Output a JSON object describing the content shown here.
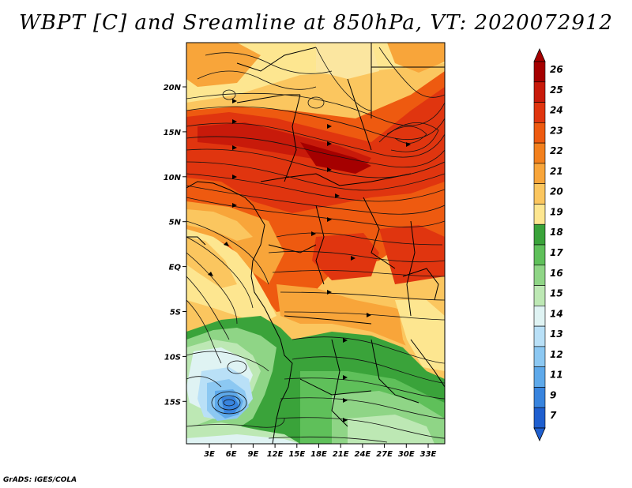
{
  "title": "WBPT [C] and Sreamline at 850hPa, VT: 2020072912",
  "credit": "GrADS: IGES/COLA",
  "map": {
    "lon_labels": [
      "3E",
      "6E",
      "9E",
      "12E",
      "15E",
      "18E",
      "21E",
      "24E",
      "27E",
      "30E",
      "33E"
    ],
    "lat_labels": [
      "20N",
      "15N",
      "10N",
      "5N",
      "EQ",
      "5S",
      "10S",
      "15S"
    ]
  },
  "colorbar": {
    "labels": [
      "26",
      "25",
      "24",
      "23",
      "22",
      "21",
      "20",
      "19",
      "18",
      "17",
      "16",
      "15",
      "14",
      "13",
      "12",
      "11",
      "9",
      "7"
    ],
    "colors": [
      "#a50000",
      "#c81a0a",
      "#e0350f",
      "#ee5a10",
      "#f3801d",
      "#f8a53a",
      "#fbc65f",
      "#fde690",
      "#3aa33a",
      "#5fc05a",
      "#8fd586",
      "#bde8b4",
      "#dff3f3",
      "#b9e0f7",
      "#8cc8f2",
      "#5ea9ea",
      "#3884de",
      "#1f5fcf"
    ]
  }
}
